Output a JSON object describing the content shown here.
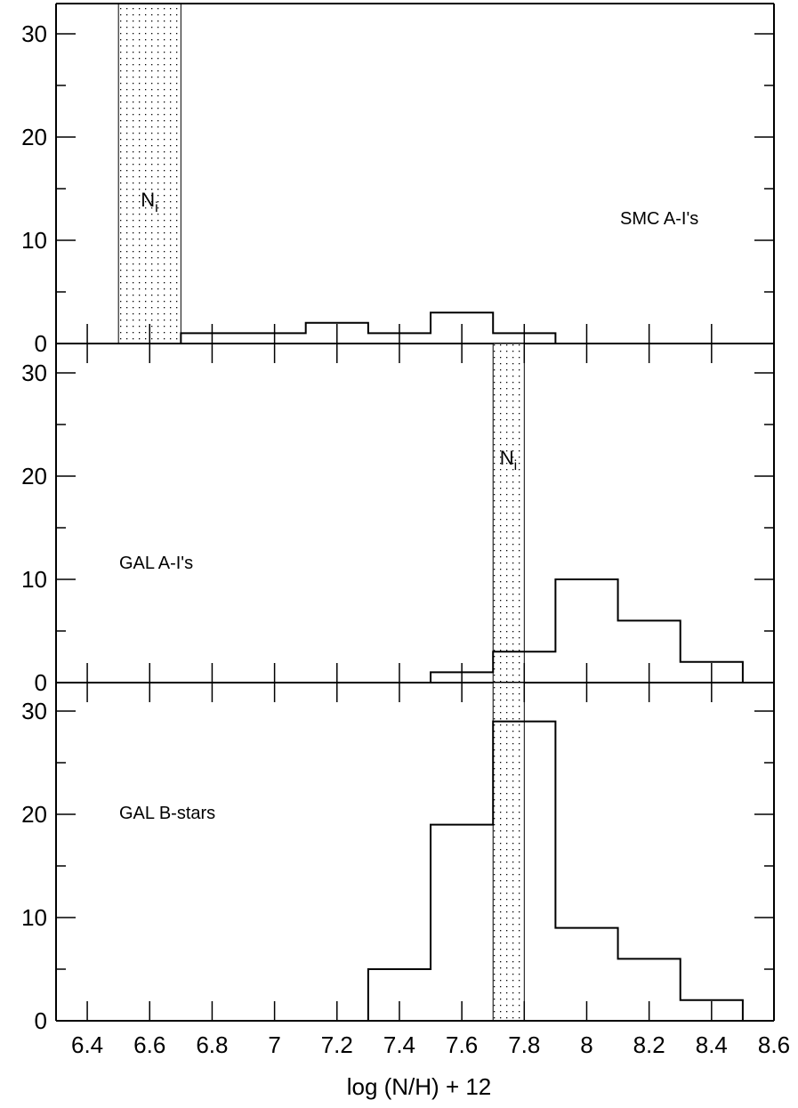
{
  "chart_data": [
    {
      "type": "histogram",
      "panel": "top",
      "label": "SMC A-I's",
      "ylim": [
        0,
        32
      ],
      "yticks": [
        0,
        10,
        20,
        30
      ],
      "bins": [
        {
          "x0": 6.7,
          "x1": 7.1,
          "count": 1
        },
        {
          "x0": 7.1,
          "x1": 7.3,
          "count": 2
        },
        {
          "x0": 7.3,
          "x1": 7.5,
          "count": 1
        },
        {
          "x0": 7.5,
          "x1": 7.7,
          "count": 3
        },
        {
          "x0": 7.7,
          "x1": 7.9,
          "count": 1
        }
      ],
      "shaded_band": {
        "x0": 6.5,
        "x1": 6.7,
        "label": "N",
        "label_sub": "i"
      }
    },
    {
      "type": "histogram",
      "panel": "middle",
      "label": "GAL A-I's",
      "ylim": [
        0,
        32
      ],
      "yticks": [
        0,
        10,
        20,
        30
      ],
      "bins": [
        {
          "x0": 7.5,
          "x1": 7.7,
          "count": 1
        },
        {
          "x0": 7.7,
          "x1": 7.9,
          "count": 3
        },
        {
          "x0": 7.9,
          "x1": 8.1,
          "count": 10
        },
        {
          "x0": 8.1,
          "x1": 8.3,
          "count": 6
        },
        {
          "x0": 8.3,
          "x1": 8.5,
          "count": 2
        }
      ],
      "shaded_band": {
        "x0": 7.7,
        "x1": 7.8,
        "label": "N",
        "label_sub": "i"
      }
    },
    {
      "type": "histogram",
      "panel": "bottom",
      "label": "GAL B-stars",
      "ylim": [
        0,
        32
      ],
      "yticks": [
        0,
        10,
        20,
        30
      ],
      "bins": [
        {
          "x0": 7.1,
          "x1": 7.3,
          "count": 0
        },
        {
          "x0": 7.3,
          "x1": 7.5,
          "count": 5
        },
        {
          "x0": 7.5,
          "x1": 7.7,
          "count": 19
        },
        {
          "x0": 7.7,
          "x1": 7.9,
          "count": 29
        },
        {
          "x0": 7.9,
          "x1": 8.1,
          "count": 9
        },
        {
          "x0": 8.1,
          "x1": 8.3,
          "count": 6
        },
        {
          "x0": 8.3,
          "x1": 8.5,
          "count": 2
        }
      ],
      "shaded_band": {
        "x0": 7.7,
        "x1": 7.8,
        "label": "",
        "label_sub": ""
      }
    }
  ],
  "x_axis": {
    "xlim": [
      6.3,
      8.6
    ],
    "ticks": [
      6.4,
      6.6,
      6.8,
      7,
      7.2,
      7.4,
      7.6,
      7.8,
      8,
      8.2,
      8.4,
      8.6
    ],
    "tick_labels": [
      "6.4",
      "6.6",
      "6.8",
      "7",
      "7.2",
      "7.4",
      "7.6",
      "7.8",
      "8",
      "8.2",
      "8.4",
      "8.6"
    ],
    "xlabel": "log (N/H) + 12"
  },
  "colors": {
    "line": "#000000",
    "background": "#ffffff"
  }
}
